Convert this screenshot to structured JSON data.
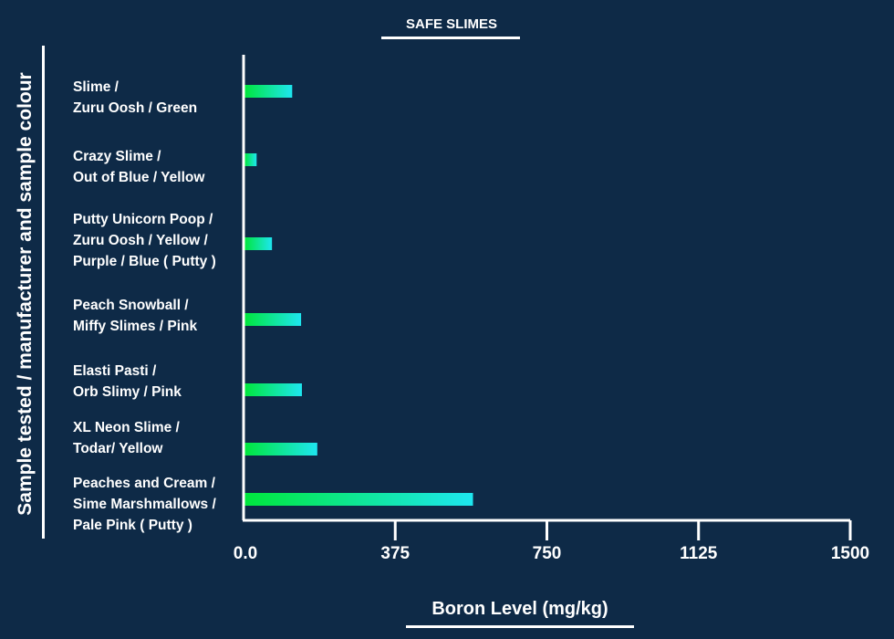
{
  "chart_data": {
    "type": "bar",
    "orientation": "horizontal",
    "title": "SAFE SLIMES",
    "xlabel": "Boron Level (mg/kg)",
    "ylabel": "Sample tested / manufacturer and sample colour",
    "xlim": [
      0,
      1500
    ],
    "xticks": [
      "0.0",
      "375",
      "750",
      "1125",
      "1500"
    ],
    "categories": [
      "Slime /\nZuru Oosh / Green",
      "Crazy Slime /\nOut of Blue / Yellow",
      "Putty Unicorn Poop /\nZuru Oosh / Yellow /\nPurple / Blue ( Putty )",
      "Peach Snowball /\nMiffy Slimes / Pink",
      "Elasti Pasti /\nOrb Slimy / Pink",
      "XL Neon Slime /\nTodar/ Yellow",
      "Peaches and Cream /\nSime Marshmallows /\nPale Pink ( Putty )"
    ],
    "values": [
      118,
      30,
      68,
      140,
      142,
      180,
      565
    ],
    "colors": {
      "bar_start": "#00e63c",
      "bar_end": "#1ee6f0",
      "background": "#0e2a47"
    },
    "grid": false
  }
}
